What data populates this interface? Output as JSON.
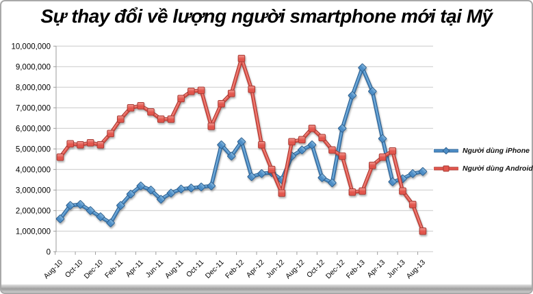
{
  "title": "Sự thay đổi về lượng người smartphone mới tại Mỹ",
  "legend": {
    "items": [
      {
        "id": "iphone",
        "label": "Người dùng iPhone"
      },
      {
        "id": "android",
        "label": "Người dùng Android"
      }
    ]
  },
  "colors": {
    "iphone": {
      "base": "#4d8dc6",
      "dark": "#2d608f",
      "light": "#8abce2"
    },
    "android": {
      "base": "#e2574e",
      "dark": "#a93b34",
      "light": "#f29b93"
    },
    "gridline": "#c9c9c9",
    "axis": "#9b9b9b",
    "text": "#000000"
  },
  "chart_data": {
    "type": "line",
    "title": "Sự thay đổi về lượng người smartphone mới tại Mỹ",
    "xlabel": "",
    "ylabel": "",
    "ylim": [
      0,
      10000000
    ],
    "ytick_step": 1000000,
    "grid": true,
    "legend_position": "right",
    "x_tick_labels": [
      "Aug-10",
      "Oct-10",
      "Dec-10",
      "Feb-11",
      "Apr-11",
      "Jun-11",
      "Aug-11",
      "Oct-11",
      "Dec-11",
      "Feb-12",
      "Apr-12",
      "Jun-12",
      "Aug-12",
      "Oct-12",
      "Dec-12",
      "Feb-13",
      "Apr-13",
      "Jun-13",
      "Aug-13"
    ],
    "categories": [
      "Aug-10",
      "Sep-10",
      "Oct-10",
      "Nov-10",
      "Dec-10",
      "Jan-11",
      "Feb-11",
      "Mar-11",
      "Apr-11",
      "May-11",
      "Jun-11",
      "Jul-11",
      "Aug-11",
      "Sep-11",
      "Oct-11",
      "Nov-11",
      "Dec-11",
      "Jan-12",
      "Feb-12",
      "Mar-12",
      "Apr-12",
      "May-12",
      "Jun-12",
      "Jul-12",
      "Aug-12",
      "Sep-12",
      "Oct-12",
      "Nov-12",
      "Dec-12",
      "Jan-13",
      "Feb-13",
      "Mar-13",
      "Apr-13",
      "May-13",
      "Jun-13",
      "Jul-13",
      "Aug-13"
    ],
    "series": [
      {
        "id": "iphone",
        "name": "Người dùng iPhone",
        "marker": "diamond",
        "values": [
          1600000,
          2250000,
          2300000,
          2000000,
          1700000,
          1400000,
          2250000,
          2800000,
          3200000,
          3000000,
          2550000,
          2850000,
          3050000,
          3100000,
          3150000,
          3200000,
          5200000,
          4650000,
          5350000,
          3650000,
          3800000,
          3850000,
          3500000,
          4650000,
          4950000,
          5200000,
          3600000,
          3350000,
          6000000,
          7600000,
          8950000,
          7800000,
          5500000,
          3400000,
          3550000,
          3800000,
          3900000
        ]
      },
      {
        "id": "android",
        "name": "Người dùng Android",
        "marker": "square",
        "values": [
          4600000,
          5250000,
          5200000,
          5300000,
          5200000,
          5750000,
          6450000,
          7000000,
          7100000,
          6800000,
          6450000,
          6450000,
          7450000,
          7800000,
          7850000,
          6100000,
          7200000,
          7700000,
          9400000,
          7900000,
          5200000,
          4000000,
          2850000,
          5350000,
          5450000,
          6000000,
          5550000,
          4950000,
          4650000,
          2900000,
          2950000,
          4200000,
          4600000,
          4900000,
          2950000,
          2300000,
          1000000
        ]
      }
    ]
  }
}
